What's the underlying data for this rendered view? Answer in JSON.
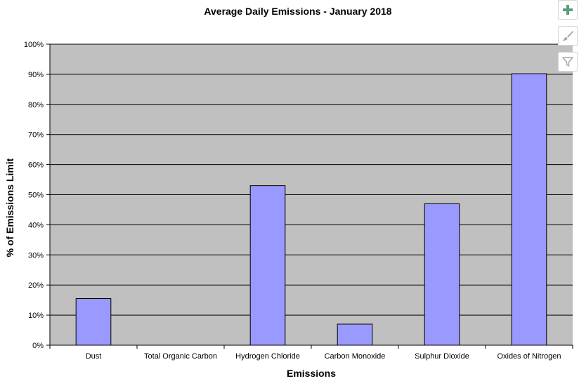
{
  "chart_data": {
    "type": "bar",
    "title": "Average Daily Emissions - January 2018",
    "xlabel": "Emissions",
    "ylabel": "% of Emissions Limit",
    "categories": [
      "Dust",
      "Total Organic Carbon",
      "Hydrogen Chloride",
      "Carbon Monoxide",
      "Sulphur Dioxide",
      "Oxides of Nitrogen"
    ],
    "values": [
      15.5,
      0,
      53,
      7,
      47,
      90.2
    ],
    "ylim": [
      0,
      100
    ],
    "yticks": [
      0,
      10,
      20,
      30,
      40,
      50,
      60,
      70,
      80,
      90,
      100
    ],
    "ytick_labels": [
      "0%",
      "10%",
      "20%",
      "30%",
      "40%",
      "50%",
      "60%",
      "70%",
      "80%",
      "90%",
      "100%"
    ],
    "grid": true,
    "colors": {
      "bar": "#9999ff",
      "plot_bg": "#c0c0c0",
      "grid": "#000000"
    }
  },
  "toolbar": {
    "icons": [
      "plus-icon",
      "brush-icon",
      "filter-icon"
    ],
    "colors": {
      "plus": "#5a9e7a",
      "icon": "#a8a8a8"
    }
  }
}
